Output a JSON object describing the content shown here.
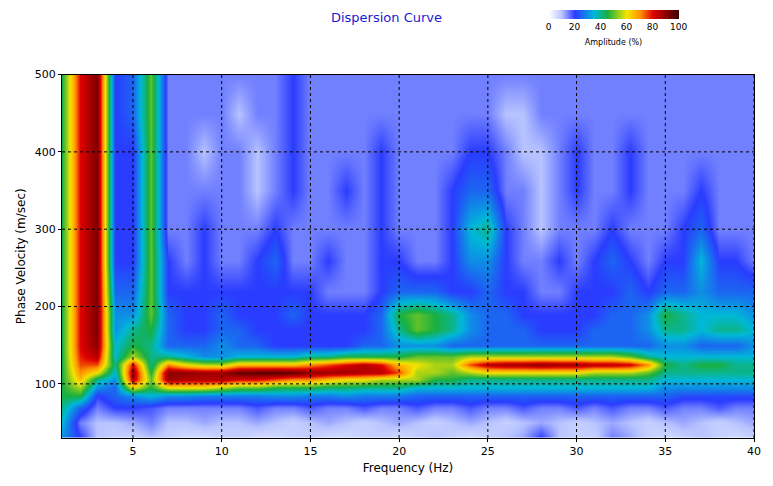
{
  "chart_data": {
    "type": "heatmap",
    "title": "Dispersion Curve",
    "x_label": "Frequency (Hz)",
    "y_label": "Phase Velocity (m/sec)",
    "xlim": [
      1,
      40
    ],
    "ylim": [
      30,
      500
    ],
    "xticks": [
      5,
      10,
      15,
      20,
      25,
      30,
      35,
      40
    ],
    "yticks": [
      100,
      200,
      300,
      400,
      500
    ],
    "grid": true,
    "x": [
      1,
      2,
      3,
      4,
      5,
      6,
      7,
      8,
      9,
      10,
      11,
      12,
      13,
      14,
      15,
      16,
      17,
      18,
      19,
      20,
      21,
      22,
      23,
      24,
      25,
      26,
      27,
      28,
      29,
      30,
      31,
      32,
      33,
      34,
      35,
      36,
      37,
      38,
      39,
      40
    ],
    "y": [
      30,
      50,
      70,
      85,
      95,
      105,
      115,
      125,
      135,
      150,
      170,
      190,
      220,
      260,
      300,
      350,
      400,
      450,
      500
    ],
    "z": [
      [
        30,
        20,
        10,
        8,
        8,
        10,
        8,
        6,
        6,
        8,
        8,
        6,
        6,
        8,
        8,
        6,
        6,
        8,
        8,
        6,
        8,
        10,
        8,
        6,
        8,
        10,
        12,
        20,
        10,
        8,
        8,
        15,
        12,
        8,
        6,
        8,
        10,
        8,
        6,
        8
      ],
      [
        35,
        15,
        10,
        10,
        12,
        15,
        10,
        10,
        12,
        10,
        10,
        12,
        10,
        8,
        10,
        12,
        10,
        8,
        10,
        12,
        10,
        8,
        10,
        12,
        10,
        8,
        10,
        12,
        10,
        8,
        10,
        12,
        10,
        8,
        10,
        12,
        10,
        8,
        10,
        12
      ],
      [
        40,
        25,
        15,
        20,
        20,
        18,
        15,
        15,
        15,
        15,
        15,
        18,
        15,
        15,
        18,
        15,
        15,
        18,
        15,
        15,
        18,
        15,
        15,
        18,
        15,
        15,
        18,
        15,
        15,
        18,
        15,
        18,
        15,
        15,
        18,
        15,
        15,
        18,
        15,
        15
      ],
      [
        45,
        45,
        20,
        25,
        30,
        35,
        30,
        30,
        28,
        28,
        28,
        28,
        30,
        30,
        28,
        28,
        30,
        28,
        28,
        28,
        25,
        25,
        25,
        25,
        25,
        25,
        25,
        25,
        25,
        25,
        25,
        25,
        25,
        25,
        25,
        22,
        22,
        22,
        22,
        22
      ],
      [
        45,
        55,
        30,
        25,
        60,
        45,
        60,
        60,
        60,
        55,
        50,
        50,
        45,
        45,
        45,
        42,
        42,
        40,
        40,
        40,
        35,
        35,
        35,
        35,
        35,
        35,
        35,
        35,
        35,
        35,
        35,
        35,
        35,
        35,
        30,
        30,
        30,
        30,
        30,
        30
      ],
      [
        45,
        65,
        40,
        30,
        85,
        50,
        88,
        85,
        85,
        85,
        80,
        80,
        75,
        70,
        70,
        65,
        60,
        60,
        55,
        55,
        55,
        45,
        45,
        40,
        40,
        40,
        40,
        40,
        40,
        40,
        40,
        40,
        40,
        40,
        35,
        35,
        35,
        35,
        35,
        35
      ],
      [
        45,
        70,
        60,
        35,
        88,
        45,
        90,
        90,
        88,
        88,
        95,
        96,
        97,
        95,
        90,
        88,
        88,
        85,
        85,
        75,
        55,
        55,
        50,
        55,
        60,
        60,
        60,
        60,
        60,
        60,
        55,
        55,
        55,
        50,
        40,
        40,
        40,
        40,
        40,
        40
      ],
      [
        45,
        75,
        75,
        40,
        80,
        40,
        70,
        60,
        55,
        55,
        65,
        65,
        65,
        65,
        70,
        75,
        80,
        85,
        80,
        65,
        60,
        55,
        55,
        75,
        85,
        88,
        88,
        90,
        88,
        88,
        85,
        85,
        82,
        70,
        45,
        40,
        45,
        45,
        40,
        40
      ],
      [
        45,
        78,
        85,
        35,
        55,
        40,
        40,
        35,
        30,
        30,
        35,
        35,
        35,
        35,
        40,
        40,
        45,
        45,
        45,
        45,
        50,
        50,
        50,
        55,
        55,
        55,
        55,
        55,
        55,
        55,
        55,
        55,
        50,
        40,
        35,
        35,
        35,
        35,
        35,
        35
      ],
      [
        45,
        80,
        90,
        35,
        45,
        40,
        25,
        25,
        25,
        30,
        25,
        25,
        20,
        20,
        20,
        20,
        20,
        25,
        25,
        30,
        30,
        30,
        25,
        25,
        25,
        25,
        25,
        25,
        25,
        25,
        25,
        25,
        25,
        25,
        30,
        30,
        25,
        25,
        25,
        30
      ],
      [
        45,
        80,
        92,
        30,
        40,
        45,
        25,
        20,
        20,
        25,
        25,
        20,
        20,
        20,
        20,
        20,
        20,
        20,
        25,
        40,
        50,
        45,
        40,
        30,
        25,
        25,
        25,
        20,
        20,
        20,
        25,
        25,
        25,
        30,
        40,
        40,
        35,
        40,
        40,
        35
      ],
      [
        45,
        80,
        92,
        30,
        30,
        50,
        25,
        20,
        20,
        25,
        20,
        20,
        20,
        25,
        20,
        20,
        20,
        20,
        25,
        45,
        50,
        45,
        40,
        30,
        25,
        25,
        20,
        20,
        20,
        20,
        20,
        25,
        25,
        30,
        45,
        40,
        35,
        35,
        35,
        30
      ],
      [
        45,
        80,
        92,
        25,
        25,
        50,
        20,
        20,
        20,
        20,
        20,
        20,
        20,
        20,
        20,
        15,
        15,
        15,
        20,
        25,
        25,
        25,
        20,
        20,
        25,
        20,
        20,
        15,
        15,
        20,
        20,
        20,
        25,
        20,
        25,
        25,
        30,
        25,
        25,
        25
      ],
      [
        45,
        80,
        92,
        20,
        20,
        50,
        20,
        15,
        20,
        15,
        15,
        20,
        25,
        15,
        15,
        20,
        15,
        15,
        20,
        20,
        15,
        15,
        20,
        30,
        30,
        20,
        15,
        15,
        20,
        15,
        20,
        25,
        20,
        15,
        20,
        20,
        35,
        20,
        20,
        15
      ],
      [
        45,
        80,
        92,
        20,
        20,
        50,
        15,
        15,
        20,
        15,
        15,
        15,
        20,
        15,
        15,
        15,
        15,
        15,
        20,
        15,
        15,
        15,
        20,
        35,
        40,
        20,
        15,
        10,
        15,
        15,
        15,
        20,
        15,
        15,
        15,
        20,
        25,
        15,
        15,
        15
      ],
      [
        45,
        80,
        92,
        20,
        20,
        50,
        15,
        15,
        15,
        15,
        15,
        10,
        15,
        20,
        15,
        15,
        20,
        15,
        20,
        15,
        15,
        15,
        20,
        25,
        25,
        15,
        15,
        10,
        15,
        20,
        15,
        15,
        20,
        15,
        15,
        15,
        20,
        15,
        15,
        15
      ],
      [
        45,
        80,
        92,
        20,
        20,
        50,
        15,
        15,
        10,
        15,
        15,
        10,
        15,
        20,
        15,
        15,
        15,
        15,
        20,
        15,
        15,
        15,
        15,
        20,
        20,
        15,
        10,
        10,
        15,
        20,
        15,
        15,
        20,
        15,
        15,
        15,
        15,
        15,
        15,
        15
      ],
      [
        45,
        80,
        92,
        20,
        25,
        50,
        15,
        15,
        15,
        15,
        10,
        15,
        15,
        20,
        15,
        15,
        15,
        15,
        15,
        15,
        15,
        15,
        15,
        15,
        15,
        10,
        10,
        15,
        15,
        15,
        15,
        15,
        15,
        15,
        15,
        15,
        15,
        15,
        15,
        15
      ],
      [
        45,
        80,
        92,
        20,
        25,
        50,
        15,
        15,
        15,
        15,
        15,
        15,
        15,
        20,
        15,
        15,
        15,
        15,
        15,
        15,
        15,
        15,
        15,
        15,
        15,
        15,
        15,
        15,
        15,
        15,
        15,
        15,
        15,
        15,
        15,
        15,
        15,
        15,
        15,
        15
      ]
    ],
    "colorbar": {
      "title": "Amplitude (%)",
      "range": [
        0,
        100
      ],
      "ticks": [
        0,
        20,
        40,
        60,
        80,
        100
      ]
    }
  }
}
